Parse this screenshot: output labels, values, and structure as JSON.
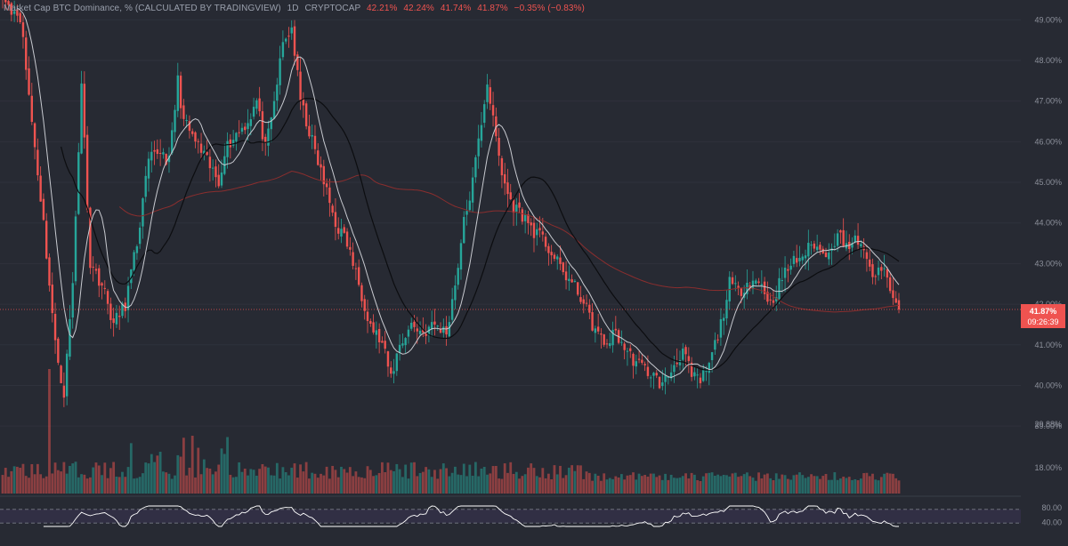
{
  "header": {
    "title": "Market Cap BTC Dominance, %",
    "source": "(CALCULATED BY TRADINGVIEW)",
    "interval": "1D",
    "exchange": "CRYPTOCAP",
    "open": "42.21%",
    "high": "42.24%",
    "low": "41.74%",
    "close": "41.87%",
    "change": "−0.35% (−0.83%)"
  },
  "price_badge": {
    "value": "41.87%",
    "countdown": "09:26:39"
  },
  "colors": {
    "up": "#26a69a",
    "down": "#ef5350",
    "ma_fast": "#c8cad0",
    "ma_mid": "#0c0d10",
    "ma_slow": "#8b2e2e",
    "rsi": "#ffffff",
    "background": "#272a33"
  },
  "chart_data": [
    {
      "type": "candlestick",
      "title": "Market Cap BTC Dominance, %",
      "ylim": [
        39.2,
        49.4
      ],
      "y_ticks": [
        "49.00%",
        "48.00%",
        "47.00%",
        "46.00%",
        "45.00%",
        "44.00%",
        "43.00%",
        "42.00%",
        "41.00%",
        "40.00%",
        "39.00%"
      ],
      "last_price": 41.87,
      "close_path": [
        [
          0,
          49.5
        ],
        [
          6,
          49.1
        ],
        [
          10,
          46.5
        ],
        [
          14,
          44.0
        ],
        [
          18,
          41.0
        ],
        [
          21,
          39.8
        ],
        [
          24,
          42.5
        ],
        [
          27,
          47.5
        ],
        [
          30,
          43.0
        ],
        [
          34,
          42.5
        ],
        [
          38,
          41.5
        ],
        [
          42,
          42.0
        ],
        [
          46,
          43.5
        ],
        [
          50,
          45.5
        ],
        [
          54,
          45.8
        ],
        [
          57,
          45.5
        ],
        [
          60,
          47.5
        ],
        [
          62,
          46.5
        ],
        [
          66,
          46.0
        ],
        [
          70,
          45.5
        ],
        [
          74,
          45.0
        ],
        [
          76,
          45.8
        ],
        [
          80,
          46.2
        ],
        [
          84,
          46.5
        ],
        [
          87,
          47.0
        ],
        [
          90,
          45.8
        ],
        [
          92,
          46.5
        ],
        [
          96,
          48.4
        ],
        [
          99,
          48.8
        ],
        [
          102,
          47.0
        ],
        [
          106,
          46.0
        ],
        [
          110,
          45.0
        ],
        [
          114,
          44.0
        ],
        [
          118,
          43.5
        ],
        [
          122,
          42.5
        ],
        [
          126,
          41.5
        ],
        [
          130,
          41.0
        ],
        [
          133,
          40.2
        ],
        [
          136,
          41.0
        ],
        [
          140,
          41.5
        ],
        [
          144,
          41.3
        ],
        [
          148,
          41.5
        ],
        [
          152,
          41.3
        ],
        [
          155,
          42.5
        ],
        [
          158,
          44.0
        ],
        [
          161,
          45.0
        ],
        [
          164,
          46.5
        ],
        [
          166,
          47.5
        ],
        [
          168,
          46.5
        ],
        [
          171,
          45.2
        ],
        [
          174,
          44.5
        ],
        [
          178,
          44.2
        ],
        [
          182,
          43.8
        ],
        [
          186,
          43.5
        ],
        [
          190,
          43.0
        ],
        [
          194,
          42.6
        ],
        [
          198,
          42.2
        ],
        [
          202,
          41.5
        ],
        [
          206,
          41.0
        ],
        [
          210,
          41.3
        ],
        [
          214,
          40.8
        ],
        [
          218,
          40.5
        ],
        [
          222,
          40.3
        ],
        [
          226,
          40.0
        ],
        [
          230,
          40.5
        ],
        [
          233,
          40.9
        ],
        [
          236,
          40.2
        ],
        [
          239,
          40.1
        ],
        [
          242,
          40.5
        ],
        [
          246,
          41.5
        ],
        [
          249,
          42.5
        ],
        [
          252,
          42.3
        ],
        [
          256,
          42.6
        ],
        [
          260,
          42.5
        ],
        [
          263,
          42.0
        ],
        [
          266,
          42.5
        ],
        [
          270,
          43.0
        ],
        [
          274,
          43.2
        ],
        [
          278,
          43.5
        ],
        [
          281,
          43.2
        ],
        [
          284,
          43.5
        ],
        [
          287,
          43.7
        ],
        [
          290,
          43.4
        ],
        [
          293,
          43.6
        ],
        [
          296,
          43.0
        ],
        [
          299,
          42.7
        ],
        [
          302,
          42.8
        ],
        [
          305,
          42.2
        ],
        [
          307,
          41.87
        ]
      ],
      "candle_count": 308,
      "moving_averages": [
        "fast",
        "mid",
        "slow"
      ]
    },
    {
      "type": "bar",
      "title": "Volume",
      "y_ticks": [
        "29.88%",
        "18.00%"
      ]
    },
    {
      "type": "line",
      "title": "RSI",
      "ylim": [
        20,
        80
      ],
      "y_ticks": [
        "80.00",
        "40.00"
      ]
    }
  ]
}
